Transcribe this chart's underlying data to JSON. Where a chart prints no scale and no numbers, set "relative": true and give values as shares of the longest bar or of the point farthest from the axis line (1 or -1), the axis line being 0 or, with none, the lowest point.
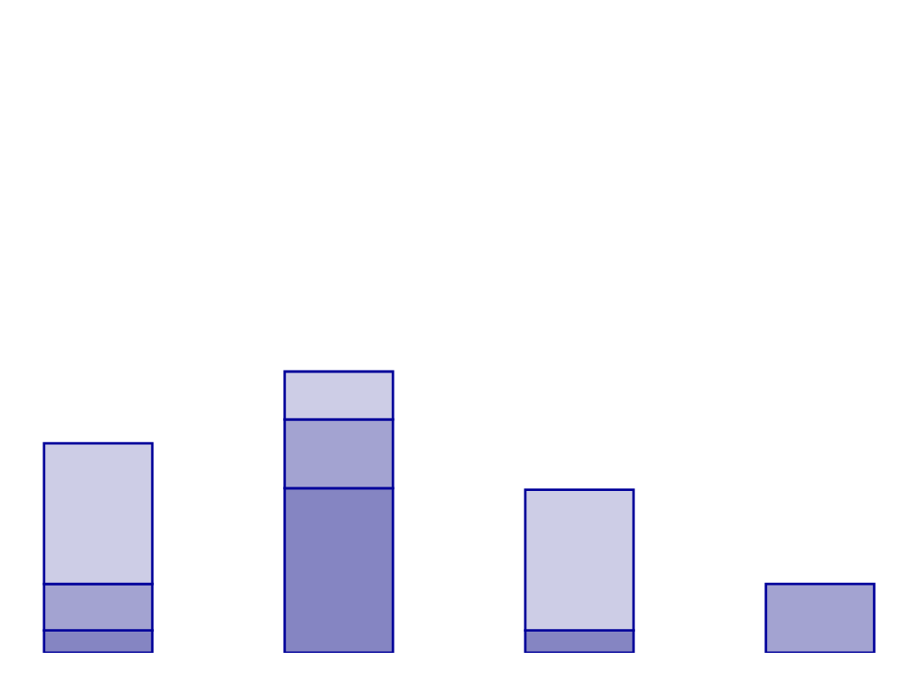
{
  "chart_data": {
    "type": "bar",
    "stacked": true,
    "relative": true,
    "categories": [
      null,
      null,
      null,
      null
    ],
    "series": [
      {
        "color": "#8585c2",
        "values": [
          0.08,
          0.585,
          0.08,
          0
        ]
      },
      {
        "color": "#a3a3d1",
        "values": [
          0.165,
          0.245,
          0,
          0.245
        ]
      },
      {
        "color": "#cdcde6",
        "values": [
          0.5,
          0.17,
          0.5,
          0
        ]
      }
    ],
    "grid": false
  }
}
